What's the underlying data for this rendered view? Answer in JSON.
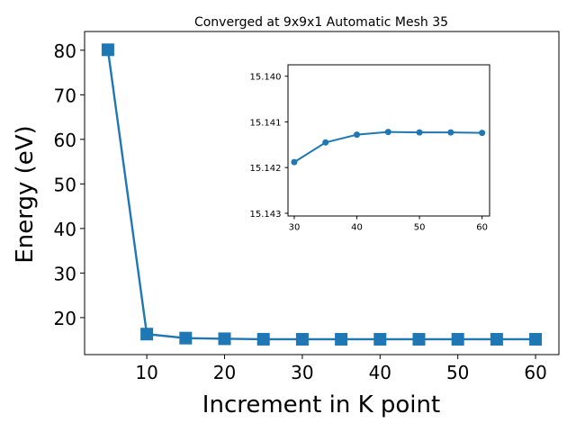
{
  "chart_data": [
    {
      "type": "line",
      "title": "Converged at 9x9x1 Automatic Mesh 35",
      "xlabel": "Increment in K point",
      "ylabel": "Energy (eV)",
      "xlim": [
        2,
        63
      ],
      "ylim": [
        11.7,
        84.2
      ],
      "xticks": [
        10,
        20,
        30,
        40,
        50,
        60
      ],
      "yticks": [
        20,
        30,
        40,
        50,
        60,
        70,
        80
      ],
      "grid": false,
      "color": "#1f77b4",
      "marker": "square",
      "x": [
        5,
        10,
        15,
        20,
        25,
        30,
        35,
        40,
        45,
        50,
        55,
        60
      ],
      "y": [
        80.1,
        16.3,
        15.4,
        15.25,
        15.15,
        15.142,
        15.141,
        15.141,
        15.141,
        15.141,
        15.141,
        15.141
      ]
    },
    {
      "type": "line",
      "inset": true,
      "xlim": [
        29,
        61.2
      ],
      "ylim": [
        15.14306,
        15.13975
      ],
      "y_inverted": true,
      "xticks": [
        30,
        40,
        50,
        60
      ],
      "yticks": [
        15.14,
        15.141,
        15.142,
        15.143
      ],
      "yticklabels": [
        "15.140",
        "15.141",
        "15.142",
        "15.143"
      ],
      "grid": false,
      "color": "#1f77b4",
      "marker": "circle",
      "x": [
        30,
        35,
        40,
        45,
        50,
        55,
        60
      ],
      "y": [
        15.14188,
        15.14145,
        15.14128,
        15.14122,
        15.14123,
        15.14123,
        15.14124
      ]
    }
  ]
}
